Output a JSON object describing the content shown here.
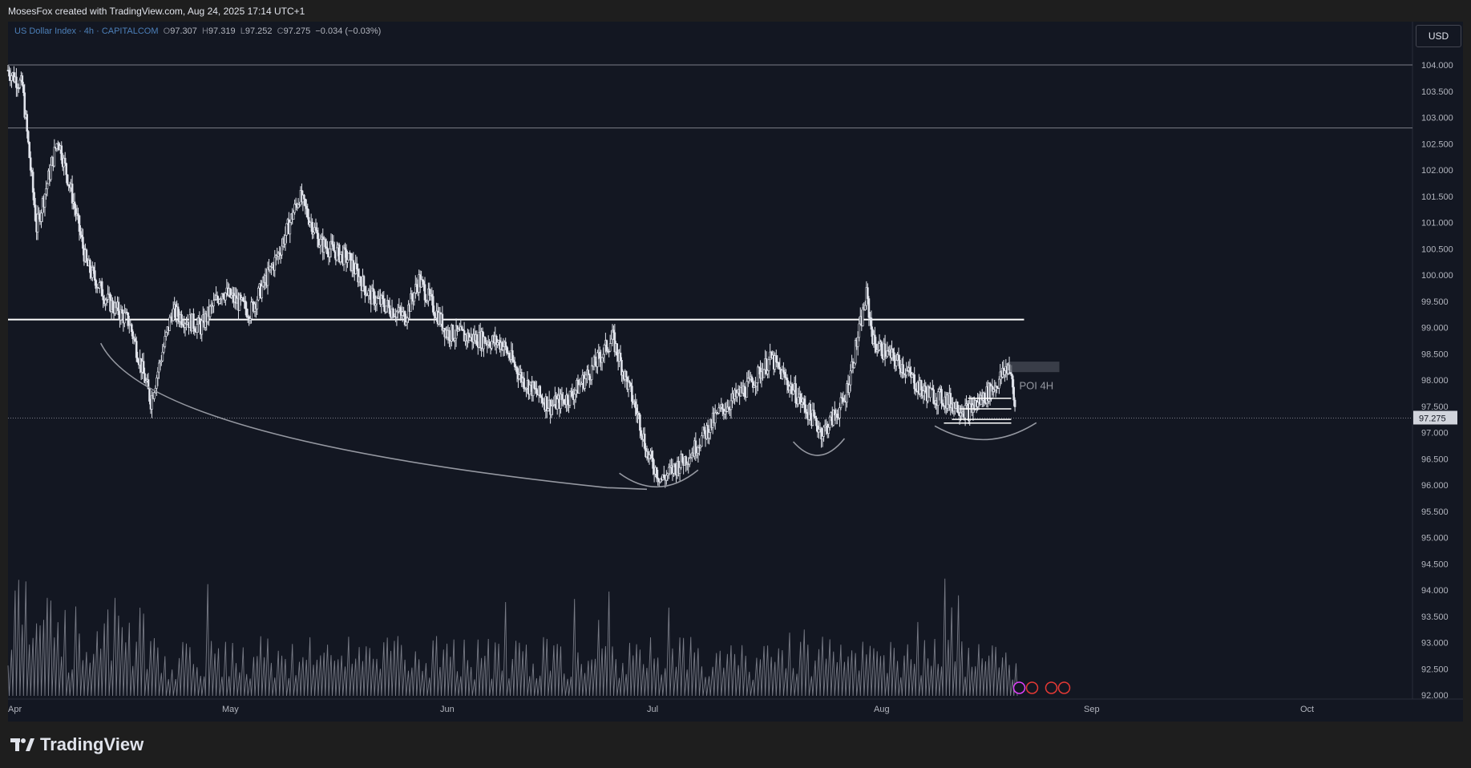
{
  "header": {
    "attribution": "MosesFox created with TradingView.com, Aug 24, 2025 17:14 UTC+1"
  },
  "legend": {
    "symbol": "US Dollar Index · 4h · CAPITALCOM",
    "o_label": "O",
    "o_value": "97.307",
    "h_label": "H",
    "h_value": "97.319",
    "l_label": "L",
    "l_value": "97.252",
    "c_label": "C",
    "c_value": "97.275",
    "change": "−0.034 (−0.03%)"
  },
  "currency_button": "USD",
  "brand": {
    "name": "TradingView",
    "icon": "tradingview-logo-icon"
  },
  "colors": {
    "background": "#131722",
    "candle": "#e0e3eb",
    "level_line": "#ffffff",
    "arc": "#9598a1",
    "volume": "#787b86"
  },
  "chart_data": {
    "type": "candlestick",
    "symbol": "US Dollar Index",
    "interval": "4h",
    "ylim": [
      92.0,
      104.25
    ],
    "y_ticks": [
      "104.000",
      "103.500",
      "103.000",
      "102.500",
      "102.000",
      "101.500",
      "101.000",
      "100.500",
      "100.000",
      "99.500",
      "99.000",
      "98.500",
      "98.000",
      "97.500",
      "97.000",
      "96.500",
      "96.000",
      "95.500",
      "95.000",
      "94.500",
      "94.000",
      "93.500",
      "93.000",
      "92.500",
      "92.000"
    ],
    "x_ticks": [
      "Apr",
      "May",
      "Jun",
      "Jul",
      "Aug",
      "Sep",
      "Oct"
    ],
    "last_price": "97.275",
    "levels": [
      {
        "type": "horizontal",
        "value": 104.0,
        "style": "thin"
      },
      {
        "type": "horizontal",
        "value": 102.8,
        "style": "thin"
      },
      {
        "type": "horizontal",
        "value": 99.15,
        "style": "bold",
        "from": "Apr",
        "to": "Aug 22"
      }
    ],
    "annotations": [
      {
        "text": "POI 4H",
        "zone_top": 98.35,
        "zone_bottom": 98.15,
        "date": "Aug 22"
      }
    ],
    "price_path_approx": [
      [
        "Apr 1",
        103.9
      ],
      [
        "Apr 3",
        103.6
      ],
      [
        "Apr 5",
        100.9
      ],
      [
        "Apr 8",
        102.6
      ],
      [
        "Apr 10",
        101.5
      ],
      [
        "Apr 12",
        100.2
      ],
      [
        "Apr 15",
        99.5
      ],
      [
        "Apr 18",
        99.1
      ],
      [
        "Apr 21",
        97.6
      ],
      [
        "Apr 24",
        99.3
      ],
      [
        "Apr 28",
        99.0
      ],
      [
        "May 1",
        99.7
      ],
      [
        "May 5",
        99.3
      ],
      [
        "May 9",
        100.4
      ],
      [
        "May 12",
        101.5
      ],
      [
        "May 15",
        100.6
      ],
      [
        "May 19",
        100.3
      ],
      [
        "May 22",
        99.6
      ],
      [
        "May 27",
        99.2
      ],
      [
        "May 29",
        99.9
      ],
      [
        "Jun 2",
        98.9
      ],
      [
        "Jun 6",
        98.8
      ],
      [
        "Jun 10",
        98.7
      ],
      [
        "Jun 13",
        98.0
      ],
      [
        "Jun 17",
        97.5
      ],
      [
        "Jun 20",
        97.7
      ],
      [
        "Jun 23",
        98.2
      ],
      [
        "Jun 26",
        98.8
      ],
      [
        "Jun 30",
        97.2
      ],
      [
        "Jul 1",
        96.6
      ],
      [
        "Jul 3",
        96.1
      ],
      [
        "Jul 7",
        96.6
      ],
      [
        "Jul 11",
        97.4
      ],
      [
        "Jul 15",
        97.9
      ],
      [
        "Jul 18",
        98.4
      ],
      [
        "Jul 22",
        97.6
      ],
      [
        "Jul 25",
        97.0
      ],
      [
        "Jul 28",
        97.6
      ],
      [
        "Jul 31",
        99.6
      ],
      [
        "Aug 1",
        98.7
      ],
      [
        "Aug 5",
        98.3
      ],
      [
        "Aug 8",
        97.8
      ],
      [
        "Aug 12",
        97.6
      ],
      [
        "Aug 15",
        97.4
      ],
      [
        "Aug 19",
        97.9
      ],
      [
        "Aug 21",
        98.3
      ],
      [
        "Aug 22",
        97.3
      ]
    ],
    "arcs": [
      {
        "name": "large-rounded-bottom",
        "from": "Apr 14",
        "to": "Jul 1",
        "low": 95.95
      },
      {
        "name": "left-shoulder",
        "from": "Jun 27",
        "to": "Jul 8",
        "low": 95.95
      },
      {
        "name": "middle-trough",
        "from": "Jul 21",
        "to": "Jul 28",
        "low": 96.55
      },
      {
        "name": "right-trough",
        "from": "Aug 10",
        "to": "Aug 25",
        "low": 96.85
      }
    ],
    "volume": "relative bar series along the bottom of the chart (line representation)"
  }
}
